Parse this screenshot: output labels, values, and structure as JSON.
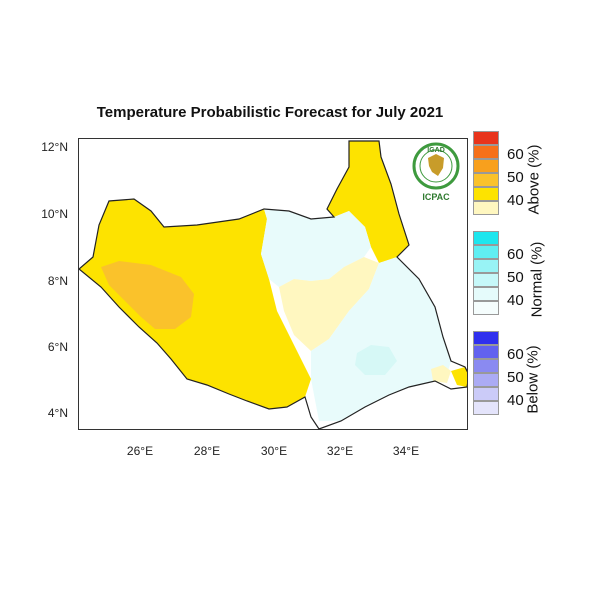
{
  "title": "Temperature Probabilistic Forecast for July 2021",
  "lat_labels": [
    "12°N",
    "10°N",
    "8°N",
    "6°N",
    "4°N"
  ],
  "lon_labels": [
    "26°E",
    "28°E",
    "30°E",
    "32°E",
    "34°E"
  ],
  "logo": {
    "top_text": "IGAD",
    "bottom_text": "ICPAC"
  },
  "legend": {
    "categories": [
      {
        "label": "Above (%)",
        "ticks": [
          "60",
          "50",
          "40"
        ],
        "colors": [
          "#e8341c",
          "#f6701a",
          "#f8a01d",
          "#fac22b",
          "#fde300",
          "#fff7c0"
        ]
      },
      {
        "label": "Normal (%)",
        "ticks": [
          "60",
          "50",
          "40"
        ],
        "colors": [
          "#1ee6ee",
          "#60eef2",
          "#98f3f5",
          "#c6f8f9",
          "#e5fbfb",
          "#f5fdfd"
        ]
      },
      {
        "label": "Below (%)",
        "ticks": [
          "60",
          "50",
          "40"
        ],
        "colors": [
          "#3030ee",
          "#6262ef",
          "#8a8af1",
          "#ababf4",
          "#cbcbf8",
          "#e4e4fb"
        ]
      }
    ]
  },
  "regions": {
    "above_color": "#fde300",
    "above_strong_color": "#fac22b",
    "above_light_color": "#fff7c0",
    "normal_color": "#e8fbfb",
    "normal_strong_color": "#d6f8f6"
  }
}
